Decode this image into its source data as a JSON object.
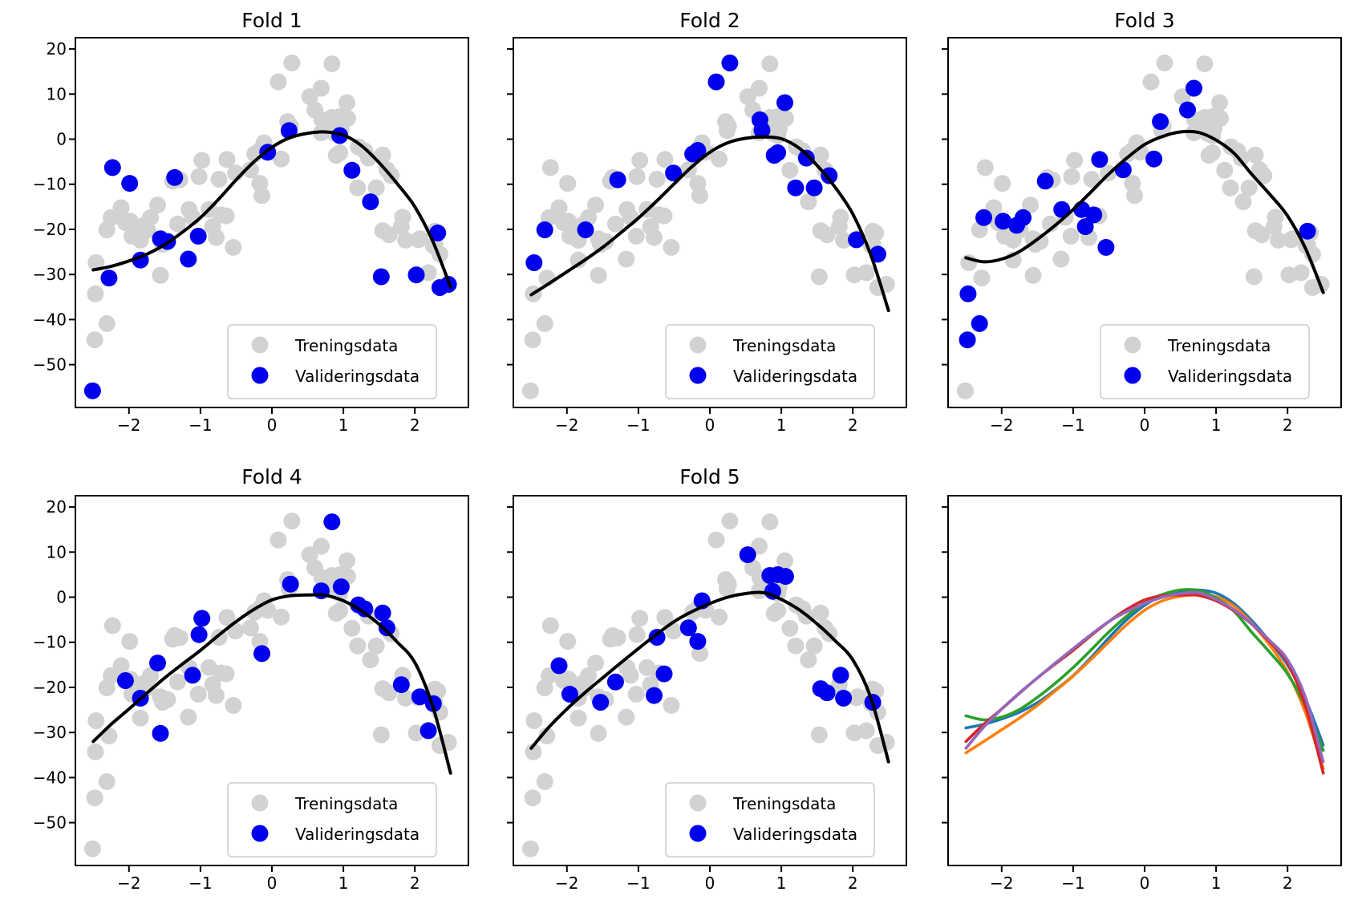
{
  "chart_data": {
    "type": "scatter",
    "description": "5-fold cross-validation of a polynomial regression: five fold panels (training vs validation points with fitted curve) and one overlay panel with the five fitted curves",
    "subplots": [
      {
        "kind": "fold",
        "fold": 1,
        "title": "Fold 1"
      },
      {
        "kind": "fold",
        "fold": 2,
        "title": "Fold 2"
      },
      {
        "kind": "fold",
        "fold": 3,
        "title": "Fold 3"
      },
      {
        "kind": "fold",
        "fold": 4,
        "title": "Fold 4"
      },
      {
        "kind": "fold",
        "fold": 5,
        "title": "Fold 5"
      },
      {
        "kind": "overlay",
        "fold": 0,
        "title": ""
      }
    ],
    "legend": {
      "training": "Treningsdata",
      "validation": "Valideringsdata",
      "position": "lower right"
    },
    "colors": {
      "training": "#d2d2d2",
      "validation": "#0000ee",
      "fit": "#000000",
      "overlay_curves": [
        "#1f77b4",
        "#ff7f0e",
        "#2ca02c",
        "#d62728",
        "#9467bd"
      ],
      "background": "#ffffff",
      "legend_border": "#cccccc"
    },
    "axes": {
      "xlim": [
        -2.75,
        2.75
      ],
      "ylim": [
        -59.5,
        22.5
      ],
      "x_ticks": [
        -2,
        -1,
        0,
        1,
        2
      ],
      "y_ticks": [
        20,
        10,
        0,
        -10,
        -20,
        -30,
        -40,
        -50
      ],
      "x_tick_labels": [
        "−2",
        "−1",
        "0",
        "1",
        "2"
      ],
      "y_tick_labels": [
        "20",
        "10",
        "0",
        "−10",
        "−20",
        "−30",
        "−40",
        "−50"
      ],
      "grid": false
    },
    "points_xyfold": [
      [
        -2.51,
        -55.8,
        1
      ],
      [
        -2.28,
        -30.8,
        1
      ],
      [
        -2.23,
        -6.3,
        1
      ],
      [
        -1.99,
        -9.8,
        1
      ],
      [
        -1.84,
        -26.8,
        1
      ],
      [
        -1.56,
        -22.1,
        1
      ],
      [
        -1.46,
        -22.7,
        1
      ],
      [
        -1.36,
        -8.5,
        1
      ],
      [
        -1.17,
        -26.6,
        1
      ],
      [
        -1.03,
        -21.5,
        1
      ],
      [
        -0.06,
        -2.9,
        1
      ],
      [
        0.24,
        1.9,
        1
      ],
      [
        0.95,
        0.8,
        1
      ],
      [
        1.12,
        -6.9,
        1
      ],
      [
        1.38,
        -13.9,
        1
      ],
      [
        1.53,
        -30.5,
        1
      ],
      [
        2.02,
        -30.1,
        1
      ],
      [
        2.32,
        -20.8,
        1
      ],
      [
        2.35,
        -32.9,
        1
      ],
      [
        2.47,
        -32.2,
        1
      ],
      [
        -2.46,
        -27.4,
        2
      ],
      [
        -2.31,
        -20.1,
        2
      ],
      [
        -1.74,
        -20.1,
        2
      ],
      [
        -1.29,
        -9.0,
        2
      ],
      [
        -0.51,
        -7.5,
        2
      ],
      [
        -0.24,
        -3.3,
        2
      ],
      [
        -0.17,
        -2.5,
        2
      ],
      [
        0.09,
        12.7,
        2
      ],
      [
        0.28,
        16.9,
        2
      ],
      [
        0.7,
        4.3,
        2
      ],
      [
        0.73,
        2.0,
        2
      ],
      [
        0.9,
        -3.6,
        2
      ],
      [
        0.95,
        -3.0,
        2
      ],
      [
        1.05,
        8.1,
        2
      ],
      [
        1.2,
        -10.8,
        2
      ],
      [
        1.35,
        -4.2,
        2
      ],
      [
        1.46,
        -10.8,
        2
      ],
      [
        1.67,
        -8.1,
        2
      ],
      [
        2.05,
        -22.3,
        2
      ],
      [
        2.35,
        -25.5,
        2
      ],
      [
        -2.48,
        -44.5,
        3
      ],
      [
        -2.47,
        -34.3,
        3
      ],
      [
        -2.31,
        -40.9,
        3
      ],
      [
        -2.25,
        -17.4,
        3
      ],
      [
        -1.98,
        -18.2,
        3
      ],
      [
        -1.79,
        -19.1,
        3
      ],
      [
        -1.7,
        -17.4,
        3
      ],
      [
        -1.39,
        -9.3,
        3
      ],
      [
        -1.16,
        -15.6,
        3
      ],
      [
        -0.88,
        -15.6,
        3
      ],
      [
        -0.83,
        -19.4,
        3
      ],
      [
        -0.71,
        -16.8,
        3
      ],
      [
        -0.63,
        -4.5,
        3
      ],
      [
        -0.54,
        -24.0,
        3
      ],
      [
        -0.3,
        -6.8,
        3
      ],
      [
        0.13,
        -4.4,
        3
      ],
      [
        0.22,
        3.9,
        3
      ],
      [
        0.6,
        6.5,
        3
      ],
      [
        0.69,
        11.3,
        3
      ],
      [
        2.28,
        -20.4,
        3
      ],
      [
        -2.05,
        -18.5,
        4
      ],
      [
        -1.84,
        -22.4,
        4
      ],
      [
        -1.6,
        -14.6,
        4
      ],
      [
        -1.56,
        -30.2,
        4
      ],
      [
        -1.11,
        -17.3,
        4
      ],
      [
        -1.02,
        -8.3,
        4
      ],
      [
        -0.98,
        -4.7,
        4
      ],
      [
        -0.14,
        -12.5,
        4
      ],
      [
        0.26,
        2.9,
        4
      ],
      [
        0.69,
        1.4,
        4
      ],
      [
        0.84,
        16.7,
        4
      ],
      [
        0.97,
        2.3,
        4
      ],
      [
        1.21,
        -1.7,
        4
      ],
      [
        1.3,
        -2.6,
        4
      ],
      [
        1.55,
        -3.5,
        4
      ],
      [
        1.61,
        -6.8,
        4
      ],
      [
        1.81,
        -19.4,
        4
      ],
      [
        2.07,
        -22.1,
        4
      ],
      [
        2.19,
        -29.6,
        4
      ],
      [
        2.26,
        -23.6,
        4
      ],
      [
        -2.11,
        -15.2,
        5
      ],
      [
        -1.96,
        -21.5,
        5
      ],
      [
        -1.53,
        -23.3,
        5
      ],
      [
        -1.32,
        -18.8,
        5
      ],
      [
        -0.78,
        -21.8,
        5
      ],
      [
        -0.74,
        -8.9,
        5
      ],
      [
        -0.64,
        -17.0,
        5
      ],
      [
        -0.3,
        -6.8,
        5
      ],
      [
        -0.17,
        -9.8,
        5
      ],
      [
        -0.11,
        -0.8,
        5
      ],
      [
        0.53,
        9.4,
        5
      ],
      [
        0.84,
        4.8,
        5
      ],
      [
        0.88,
        1.3,
        5
      ],
      [
        0.95,
        5.0,
        5
      ],
      [
        1.06,
        4.6,
        5
      ],
      [
        1.55,
        -20.3,
        5
      ],
      [
        1.64,
        -21.2,
        5
      ],
      [
        1.83,
        -17.3,
        5
      ],
      [
        1.87,
        -22.4,
        5
      ],
      [
        2.28,
        -23.3,
        5
      ]
    ],
    "curves": {
      "x": [
        -2.5,
        -2.25,
        -2,
        -1.75,
        -1.5,
        -1.25,
        -1,
        -0.75,
        -0.5,
        -0.25,
        0,
        0.25,
        0.5,
        0.75,
        1,
        1.25,
        1.5,
        1.75,
        2,
        2.25,
        2.5
      ],
      "folds": [
        [
          -29.0,
          -28.2,
          -27.0,
          -25.5,
          -23.4,
          -20.6,
          -17.4,
          -13.4,
          -9.0,
          -5.0,
          -1.8,
          0.3,
          1.3,
          1.6,
          0.9,
          -1.4,
          -5.2,
          -9.8,
          -15.0,
          -22.6,
          -32.8
        ],
        [
          -34.5,
          -32.0,
          -29.4,
          -26.8,
          -24.0,
          -20.8,
          -17.5,
          -13.8,
          -9.9,
          -6.1,
          -2.9,
          -0.8,
          0.2,
          0.5,
          0.1,
          -2.0,
          -5.8,
          -10.6,
          -16.6,
          -25.6,
          -38.0
        ],
        [
          -26.3,
          -27.2,
          -26.6,
          -24.9,
          -22.2,
          -19.1,
          -15.6,
          -11.7,
          -7.7,
          -4.2,
          -1.2,
          0.6,
          1.6,
          1.5,
          -0.2,
          -3.1,
          -7.8,
          -12.2,
          -17.0,
          -24.2,
          -34.0
        ],
        [
          -32.0,
          -28.2,
          -24.8,
          -21.3,
          -17.9,
          -14.8,
          -11.8,
          -8.5,
          -5.4,
          -2.7,
          -0.6,
          0.3,
          0.5,
          0.4,
          -0.8,
          -3.0,
          -6.0,
          -9.9,
          -14.5,
          -24.2,
          -39.0
        ],
        [
          -33.5,
          -28.8,
          -24.8,
          -21.2,
          -17.9,
          -14.6,
          -11.4,
          -8.3,
          -5.4,
          -3.2,
          -1.4,
          0.0,
          0.8,
          1.0,
          -0.5,
          -2.8,
          -5.9,
          -9.6,
          -13.9,
          -22.2,
          -36.5
        ]
      ]
    }
  }
}
